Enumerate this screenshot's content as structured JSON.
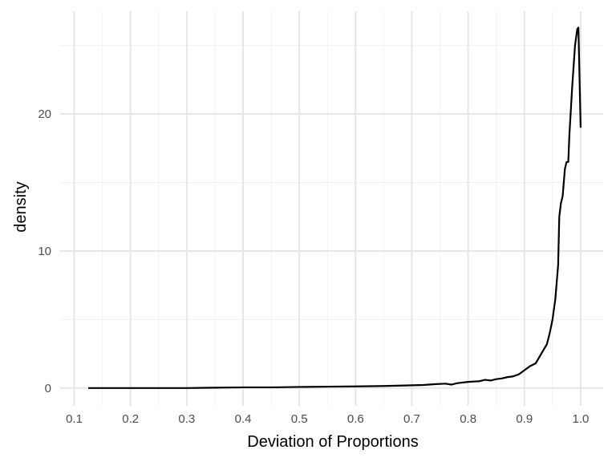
{
  "chart_data": {
    "type": "line",
    "title": "",
    "xlabel": "Deviation of Proportions",
    "ylabel": "density",
    "xlim": [
      0.075,
      1.04
    ],
    "ylim": [
      -1.3,
      27.5
    ],
    "x_ticks": [
      0.1,
      0.2,
      0.3,
      0.4,
      0.5,
      0.6,
      0.7,
      0.8,
      0.9,
      1.0
    ],
    "x_tick_labels": [
      "0.1",
      "0.2",
      "0.3",
      "0.4",
      "0.5",
      "0.6",
      "0.7",
      "0.8",
      "0.9",
      "1.0"
    ],
    "y_ticks": [
      0,
      10,
      20
    ],
    "y_tick_labels": [
      "0",
      "10",
      "20"
    ],
    "grid": true,
    "legend": "none",
    "line_color": "#000000",
    "series": [
      {
        "x": [
          0.125,
          0.2,
          0.3,
          0.4,
          0.45,
          0.5,
          0.55,
          0.6,
          0.65,
          0.7,
          0.72,
          0.74,
          0.76,
          0.77,
          0.78,
          0.8,
          0.82,
          0.83,
          0.84,
          0.85,
          0.86,
          0.87,
          0.88,
          0.89,
          0.9,
          0.91,
          0.92,
          0.93,
          0.94,
          0.945,
          0.95,
          0.955,
          0.96,
          0.962,
          0.965,
          0.968,
          0.972,
          0.975,
          0.978,
          0.98,
          0.985,
          0.99,
          0.994,
          0.996,
          1.0
        ],
        "y": [
          0.0,
          0.0,
          0.0,
          0.05,
          0.05,
          0.08,
          0.1,
          0.12,
          0.15,
          0.2,
          0.22,
          0.28,
          0.32,
          0.25,
          0.35,
          0.45,
          0.5,
          0.6,
          0.55,
          0.65,
          0.7,
          0.8,
          0.85,
          1.0,
          1.3,
          1.6,
          1.8,
          2.5,
          3.2,
          4.0,
          5.0,
          6.5,
          9.0,
          12.5,
          13.5,
          14.0,
          16.0,
          16.5,
          16.5,
          18.5,
          22.0,
          25.0,
          26.2,
          26.3,
          19.0
        ]
      }
    ]
  }
}
